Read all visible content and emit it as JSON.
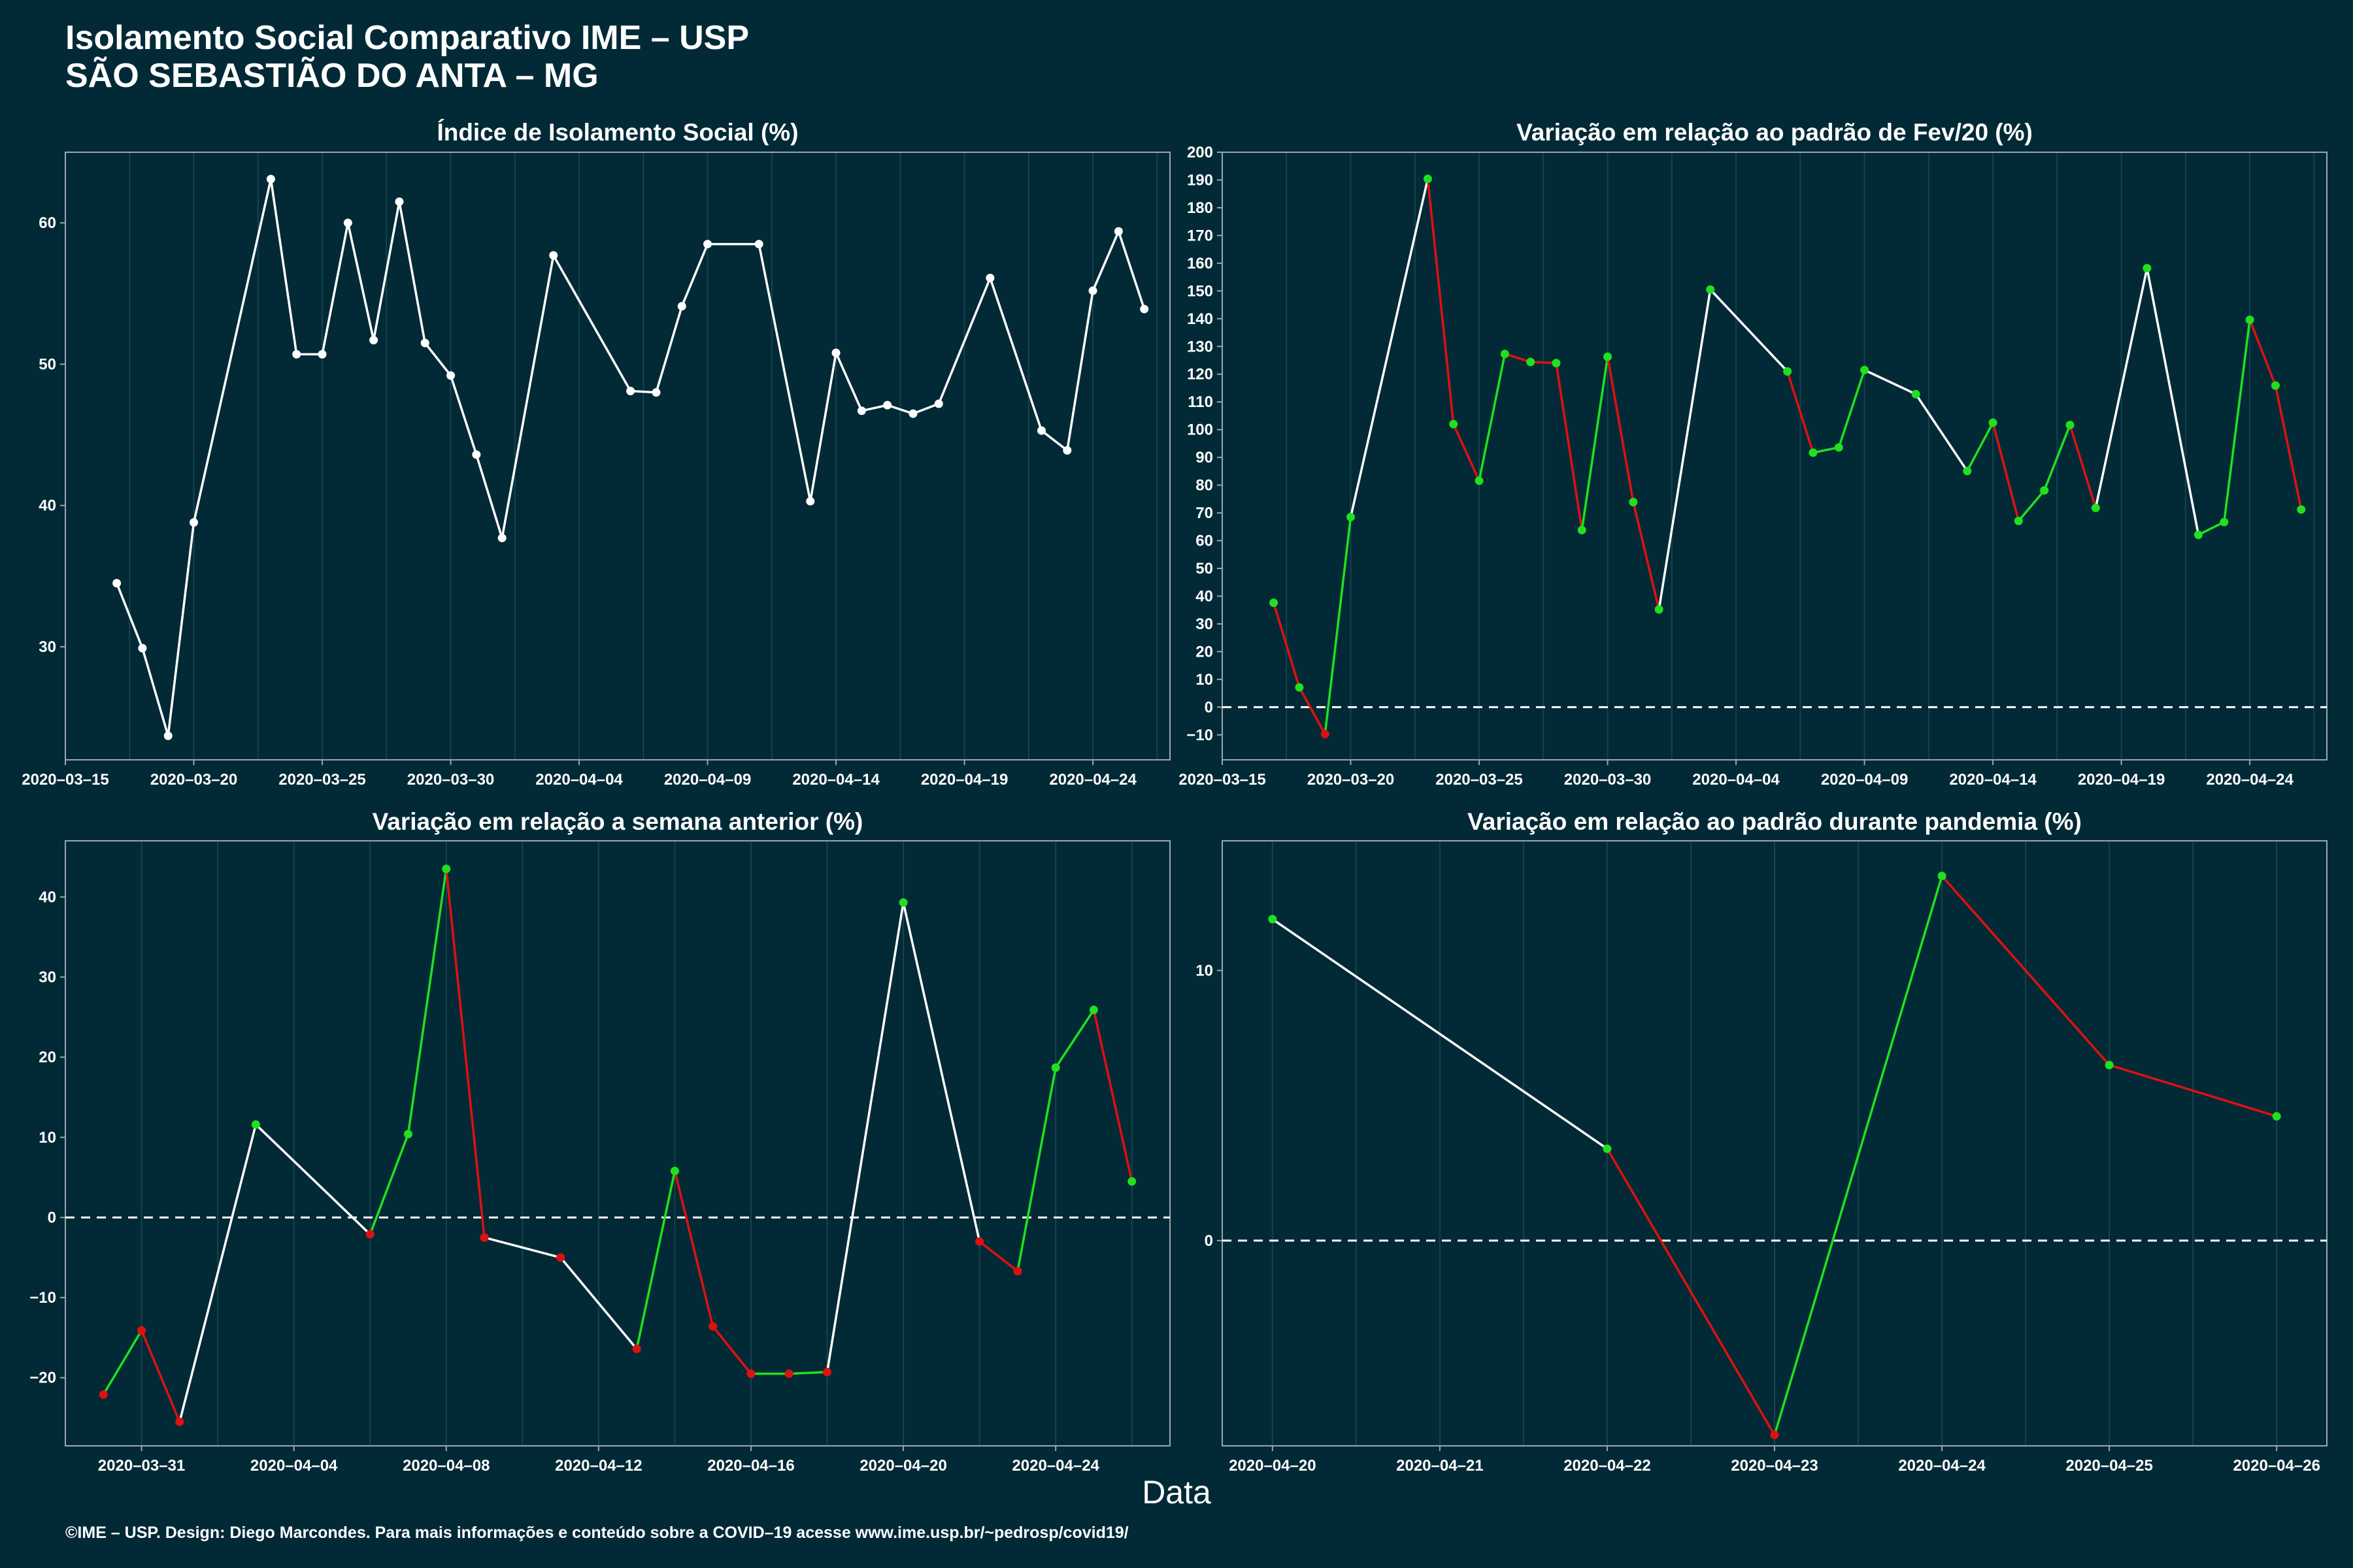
{
  "title_line1": "Isolamento Social Comparativo IME – USP",
  "title_line2": "SÃO SEBASTIÃO DO ANTA – MG",
  "xlabel": "Data",
  "footer": "©IME – USP. Design: Diego Marcondes. Para mais informações e conteúdo sobre a COVID–19 acesse www.ime.usp.br/~pedrosp/covid19/",
  "colors": {
    "background": "#022a36",
    "line_neutral": "#ffffff",
    "positive": "#1fe11f",
    "negative": "#e01010",
    "grid": "#16434e"
  },
  "chart_data": [
    {
      "type": "line",
      "title": "Índice de Isolamento Social (%)",
      "x_ticks": [
        "2020–03–15",
        "2020–03–20",
        "2020–03–25",
        "2020–03–30",
        "2020–04–04",
        "2020–04–09",
        "2020–04–14",
        "2020–04–19",
        "2020–04–24"
      ],
      "y_ticks": [
        30,
        40,
        50,
        60
      ],
      "xlim": [
        "2020-03-15",
        "2020-04-27"
      ],
      "ylim": [
        22,
        65
      ],
      "points": [
        [
          "2020-03-17",
          34.5
        ],
        [
          "2020-03-18",
          29.9
        ],
        [
          "2020-03-19",
          23.7
        ],
        [
          "2020-03-20",
          38.8
        ],
        [
          "2020-03-23",
          63.1
        ],
        [
          "2020-03-24",
          50.7
        ],
        [
          "2020-03-25",
          50.7
        ],
        [
          "2020-03-26",
          60.0
        ],
        [
          "2020-03-27",
          51.7
        ],
        [
          "2020-03-28",
          61.5
        ],
        [
          "2020-03-29",
          51.5
        ],
        [
          "2020-03-30",
          49.2
        ],
        [
          "2020-03-31",
          43.6
        ],
        [
          "2020-04-01",
          37.7
        ],
        [
          "2020-04-03",
          57.7
        ],
        [
          "2020-04-06",
          48.1
        ],
        [
          "2020-04-07",
          48.0
        ],
        [
          "2020-04-08",
          54.1
        ],
        [
          "2020-04-09",
          58.5
        ],
        [
          "2020-04-11",
          58.5
        ],
        [
          "2020-04-13",
          40.3
        ],
        [
          "2020-04-14",
          50.8
        ],
        [
          "2020-04-15",
          46.7
        ],
        [
          "2020-04-16",
          47.1
        ],
        [
          "2020-04-17",
          46.5
        ],
        [
          "2020-04-18",
          47.2
        ],
        [
          "2020-04-20",
          56.1
        ],
        [
          "2020-04-22",
          45.3
        ],
        [
          "2020-04-23",
          43.9
        ],
        [
          "2020-04-24",
          55.2
        ],
        [
          "2020-04-25",
          59.4
        ],
        [
          "2020-04-26",
          53.9
        ]
      ]
    },
    {
      "type": "line",
      "title": "Variação em relação ao padrão de Fev/20 (%)",
      "x_ticks": [
        "2020–03–15",
        "2020–03–20",
        "2020–03–25",
        "2020–03–30",
        "2020–04–04",
        "2020–04–09",
        "2020–04–14",
        "2020–04–19",
        "2020–04–24"
      ],
      "y_ticks": [
        -10,
        0,
        10,
        20,
        30,
        40,
        50,
        60,
        70,
        80,
        90,
        100,
        110,
        120,
        130,
        140,
        150,
        160,
        170,
        180,
        190,
        200
      ],
      "xlim": [
        "2020-03-15",
        "2020-04-27"
      ],
      "ylim": [
        -19,
        200
      ],
      "reference_line": 0,
      "points": [
        [
          "2020-03-17",
          37.6
        ],
        [
          "2020-03-18",
          7.1
        ],
        [
          "2020-03-19",
          -9.7
        ],
        [
          "2020-03-20",
          68.5
        ],
        [
          "2020-03-23",
          190.4
        ],
        [
          "2020-03-24",
          102.0
        ],
        [
          "2020-03-25",
          81.6
        ],
        [
          "2020-03-26",
          127.3
        ],
        [
          "2020-03-27",
          124.4
        ],
        [
          "2020-03-28",
          124.0
        ],
        [
          "2020-03-29",
          63.8
        ],
        [
          "2020-03-30",
          126.3
        ],
        [
          "2020-03-31",
          73.9
        ],
        [
          "2020-04-01",
          35.2
        ],
        [
          "2020-04-03",
          150.5
        ],
        [
          "2020-04-06",
          121.0
        ],
        [
          "2020-04-07",
          91.7
        ],
        [
          "2020-04-08",
          93.6
        ],
        [
          "2020-04-09",
          121.5
        ],
        [
          "2020-04-11",
          112.8
        ],
        [
          "2020-04-13",
          85.1
        ],
        [
          "2020-04-14",
          102.5
        ],
        [
          "2020-04-15",
          67.1
        ],
        [
          "2020-04-16",
          78.1
        ],
        [
          "2020-04-17",
          101.7
        ],
        [
          "2020-04-18",
          71.8
        ],
        [
          "2020-04-20",
          158.2
        ],
        [
          "2020-04-22",
          62.1
        ],
        [
          "2020-04-23",
          66.7
        ],
        [
          "2020-04-24",
          139.6
        ],
        [
          "2020-04-25",
          115.9
        ],
        [
          "2020-04-26",
          71.2
        ]
      ]
    },
    {
      "type": "line",
      "title": "Variação em relação a semana anterior (%)",
      "x_ticks": [
        "2020–03–31",
        "2020–04–04",
        "2020–04–08",
        "2020–04–12",
        "2020–04–16",
        "2020–04–20",
        "2020–04–24"
      ],
      "y_ticks": [
        -20,
        -10,
        0,
        10,
        20,
        30,
        40
      ],
      "xlim": [
        "2020-03-29",
        "2020-04-27"
      ],
      "ylim": [
        -28.5,
        47
      ],
      "reference_line": 0,
      "points": [
        [
          "2020-03-30",
          -22.1
        ],
        [
          "2020-03-31",
          -14.1
        ],
        [
          "2020-04-01",
          -25.5
        ],
        [
          "2020-04-03",
          11.6
        ],
        [
          "2020-04-06",
          -2.1
        ],
        [
          "2020-04-07",
          10.4
        ],
        [
          "2020-04-08",
          43.5
        ],
        [
          "2020-04-09",
          -2.5
        ],
        [
          "2020-04-11",
          -5.0
        ],
        [
          "2020-04-13",
          -16.4
        ],
        [
          "2020-04-14",
          5.8
        ],
        [
          "2020-04-15",
          -13.6
        ],
        [
          "2020-04-16",
          -19.5
        ],
        [
          "2020-04-17",
          -19.5
        ],
        [
          "2020-04-18",
          -19.3
        ],
        [
          "2020-04-20",
          39.3
        ],
        [
          "2020-04-22",
          -3.0
        ],
        [
          "2020-04-23",
          -6.7
        ],
        [
          "2020-04-24",
          18.7
        ],
        [
          "2020-04-25",
          25.9
        ],
        [
          "2020-04-26",
          4.5
        ]
      ]
    },
    {
      "type": "line",
      "title": "Variação em relação ao padrão durante pandemia (%)",
      "x_ticks": [
        "2020–04–20",
        "2020–04–21",
        "2020–04–22",
        "2020–04–23",
        "2020–04–24",
        "2020–04–25",
        "2020–04–26"
      ],
      "y_ticks": [
        0,
        10
      ],
      "xlim": [
        "2020-04-19.7",
        "2020-04-26.3"
      ],
      "ylim": [
        -7.6,
        14.8
      ],
      "reference_line": 0,
      "points": [
        [
          "2020-04-20",
          11.9
        ],
        [
          "2020-04-22",
          3.4
        ],
        [
          "2020-04-23",
          -7.2
        ],
        [
          "2020-04-24",
          13.5
        ],
        [
          "2020-04-25",
          6.5
        ],
        [
          "2020-04-26",
          4.6
        ]
      ]
    }
  ]
}
